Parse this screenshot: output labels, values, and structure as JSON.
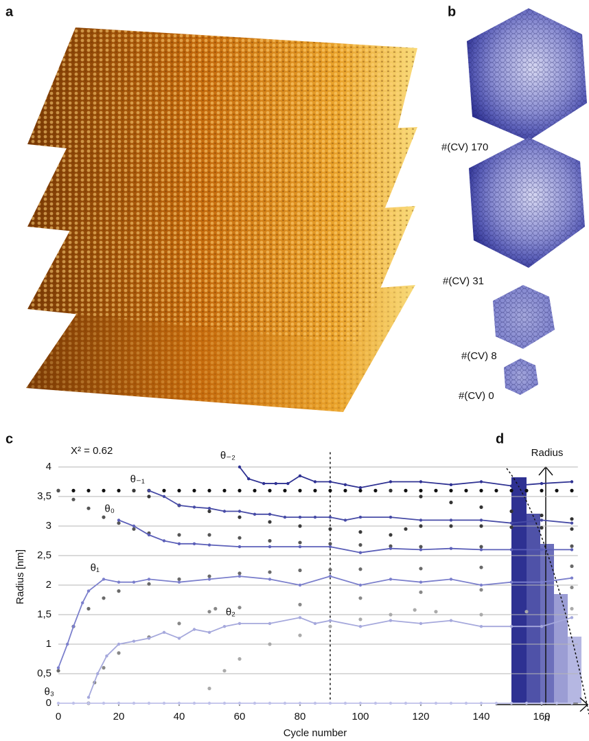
{
  "panel_labels": {
    "a": "a",
    "b": "b",
    "c": "c",
    "d": "d"
  },
  "panel_b": {
    "labels": [
      "#(CV) 170",
      "#(CV) 31",
      "#(CV) 8",
      "#(CV) 0"
    ]
  },
  "chart_data": {
    "type": "line",
    "annotation": "X² = 0.62",
    "y_label": "Radius [nm]",
    "x_label": "Cycle number",
    "xlim": [
      0,
      172
    ],
    "xticks": [
      0,
      20,
      40,
      60,
      80,
      100,
      120,
      140,
      160
    ],
    "ylim": [
      0,
      4.25
    ],
    "yticks": [
      0,
      {
        "value": 0.5,
        "label": "0,5"
      },
      1,
      {
        "value": 1.5,
        "label": "1,5"
      },
      2,
      {
        "value": 2.5,
        "label": "2,5"
      },
      3,
      {
        "value": 3.5,
        "label": "3,5"
      },
      4
    ],
    "grid": true,
    "vline": 90,
    "series": [
      {
        "color": "#111111",
        "style": "dots",
        "x": [
          0,
          5,
          10,
          15,
          20,
          25,
          30,
          35,
          40,
          45,
          50,
          55,
          60,
          65,
          70,
          75,
          80,
          85,
          90,
          95,
          100,
          105,
          110,
          115,
          120,
          125,
          130,
          135,
          140,
          145,
          150,
          155,
          160,
          165,
          170
        ],
        "values": [
          3.6,
          3.6,
          3.6,
          3.6,
          3.6,
          3.6,
          3.6,
          3.6,
          3.6,
          3.6,
          3.6,
          3.6,
          3.6,
          3.6,
          3.6,
          3.6,
          3.6,
          3.6,
          3.6,
          3.6,
          3.6,
          3.6,
          3.6,
          3.6,
          3.6,
          3.6,
          3.6,
          3.6,
          3.6,
          3.6,
          3.6,
          3.6,
          3.6,
          3.6,
          3.6
        ]
      },
      {
        "color": "#333333",
        "style": "dots",
        "x": [
          110,
          120,
          130,
          140,
          150,
          160,
          170
        ],
        "values": [
          3.6,
          3.5,
          3.4,
          3.32,
          3.25,
          3.18,
          3.12
        ]
      },
      {
        "color": "#3a3a3a",
        "style": "dots",
        "x": [
          25,
          30,
          40,
          50,
          60,
          70,
          80,
          90,
          100,
          110,
          115,
          120,
          130,
          140,
          150,
          160,
          170
        ],
        "values": [
          3.6,
          3.5,
          3.35,
          3.25,
          3.15,
          3.07,
          3.0,
          2.95,
          2.9,
          2.85,
          2.95,
          3.0,
          3.0,
          3.0,
          2.98,
          2.97,
          2.95
        ]
      },
      {
        "color": "#555555",
        "style": "dots",
        "x": [
          0,
          5,
          10,
          15,
          20,
          25,
          30,
          40,
          50,
          60,
          70,
          80,
          90,
          100,
          110,
          120,
          140,
          170
        ],
        "values": [
          3.6,
          3.45,
          3.3,
          3.15,
          3.05,
          2.95,
          2.88,
          2.85,
          2.85,
          2.8,
          2.75,
          2.72,
          2.7,
          2.68,
          2.66,
          2.65,
          2.65,
          2.66
        ]
      },
      {
        "color": "#6a6a6a",
        "style": "dots",
        "x": [
          0,
          5,
          10,
          15,
          20,
          30,
          40,
          50,
          60,
          70,
          80,
          90,
          100,
          120,
          140,
          170
        ],
        "values": [
          0.55,
          1.3,
          1.6,
          1.78,
          1.9,
          2.02,
          2.1,
          2.15,
          2.2,
          2.22,
          2.25,
          2.26,
          2.27,
          2.28,
          2.3,
          2.32
        ]
      },
      {
        "color": "#888888",
        "style": "dots",
        "x": [
          10,
          12,
          15,
          20,
          30,
          40,
          50,
          52,
          60,
          80,
          100,
          120,
          140,
          170
        ],
        "values": [
          0.0,
          0.35,
          0.6,
          0.85,
          1.12,
          1.35,
          1.55,
          1.6,
          1.62,
          1.67,
          1.78,
          1.88,
          1.92,
          1.96
        ]
      },
      {
        "color": "#aaaaaa",
        "style": "dots",
        "x": [
          50,
          55,
          60,
          70,
          80,
          90,
          100,
          110,
          118,
          125,
          140,
          155,
          170
        ],
        "values": [
          0.25,
          0.55,
          0.75,
          1.0,
          1.15,
          1.3,
          1.42,
          1.5,
          1.58,
          1.55,
          1.5,
          1.55,
          1.6
        ]
      },
      {
        "label": "θ₋₂",
        "color": "#2e3192",
        "style": "markers",
        "x": [
          60,
          63,
          68,
          72,
          76,
          80,
          85,
          90,
          95,
          100,
          110,
          120,
          130,
          140,
          150,
          160,
          170
        ],
        "values": [
          4.0,
          3.8,
          3.72,
          3.72,
          3.72,
          3.85,
          3.75,
          3.75,
          3.7,
          3.65,
          3.75,
          3.75,
          3.7,
          3.75,
          3.68,
          3.72,
          3.75
        ]
      },
      {
        "label": "θ₋₁",
        "color": "#474ba6",
        "style": "markers",
        "x": [
          30,
          35,
          40,
          45,
          50,
          55,
          60,
          65,
          70,
          75,
          80,
          85,
          90,
          95,
          100,
          110,
          120,
          130,
          140,
          150,
          160,
          170
        ],
        "values": [
          3.6,
          3.5,
          3.35,
          3.32,
          3.3,
          3.25,
          3.25,
          3.2,
          3.2,
          3.15,
          3.15,
          3.15,
          3.15,
          3.1,
          3.15,
          3.15,
          3.1,
          3.1,
          3.1,
          3.05,
          3.1,
          3.05
        ]
      },
      {
        "label": "θ₀",
        "color": "#5b5fb8",
        "style": "markers",
        "x": [
          20,
          25,
          30,
          35,
          40,
          45,
          50,
          60,
          70,
          80,
          90,
          100,
          110,
          120,
          130,
          140,
          150,
          160,
          170
        ],
        "values": [
          3.1,
          3.0,
          2.85,
          2.75,
          2.7,
          2.7,
          2.68,
          2.65,
          2.65,
          2.65,
          2.65,
          2.55,
          2.62,
          2.6,
          2.62,
          2.6,
          2.6,
          2.6,
          2.6
        ]
      },
      {
        "label": "θ₁",
        "color": "#7b7fcc",
        "style": "markers",
        "x": [
          0,
          3,
          5,
          8,
          10,
          15,
          20,
          25,
          30,
          40,
          50,
          60,
          70,
          80,
          90,
          100,
          110,
          120,
          130,
          140,
          150,
          160,
          170
        ],
        "values": [
          0.6,
          1.0,
          1.3,
          1.7,
          1.9,
          2.1,
          2.05,
          2.05,
          2.1,
          2.05,
          2.1,
          2.15,
          2.1,
          2.0,
          2.15,
          2.0,
          2.1,
          2.05,
          2.1,
          2.0,
          2.05,
          2.05,
          2.12
        ]
      },
      {
        "label": "θ₂",
        "color": "#a5a8dc",
        "style": "markers",
        "x": [
          10,
          13,
          16,
          20,
          25,
          30,
          35,
          40,
          45,
          50,
          55,
          60,
          70,
          80,
          85,
          90,
          100,
          110,
          120,
          130,
          140,
          150,
          160,
          170
        ],
        "values": [
          0.1,
          0.5,
          0.8,
          1.0,
          1.05,
          1.1,
          1.2,
          1.1,
          1.25,
          1.2,
          1.3,
          1.35,
          1.35,
          1.45,
          1.35,
          1.4,
          1.3,
          1.4,
          1.35,
          1.4,
          1.3,
          1.3,
          1.3,
          1.45
        ]
      },
      {
        "label": "θ₃",
        "color": "#bfc1ea",
        "style": "markers",
        "x": [
          0,
          5,
          10,
          15,
          20,
          25,
          30,
          35,
          40,
          45,
          50,
          55,
          60,
          65,
          70,
          75,
          80,
          85,
          90,
          95,
          100,
          105,
          110,
          115,
          120,
          125,
          130,
          135,
          140,
          145,
          150,
          155,
          160,
          165,
          170
        ],
        "values": [
          0,
          0,
          0,
          0,
          0,
          0,
          0,
          0,
          0,
          0,
          0,
          0,
          0,
          0,
          0,
          0,
          0,
          0,
          0,
          0,
          0,
          0,
          0,
          0,
          0,
          0,
          0,
          0,
          0,
          0,
          0,
          0,
          0,
          0,
          0
        ]
      }
    ]
  },
  "panel_d": {
    "y_label": "Radius",
    "x_label": "n"
  }
}
